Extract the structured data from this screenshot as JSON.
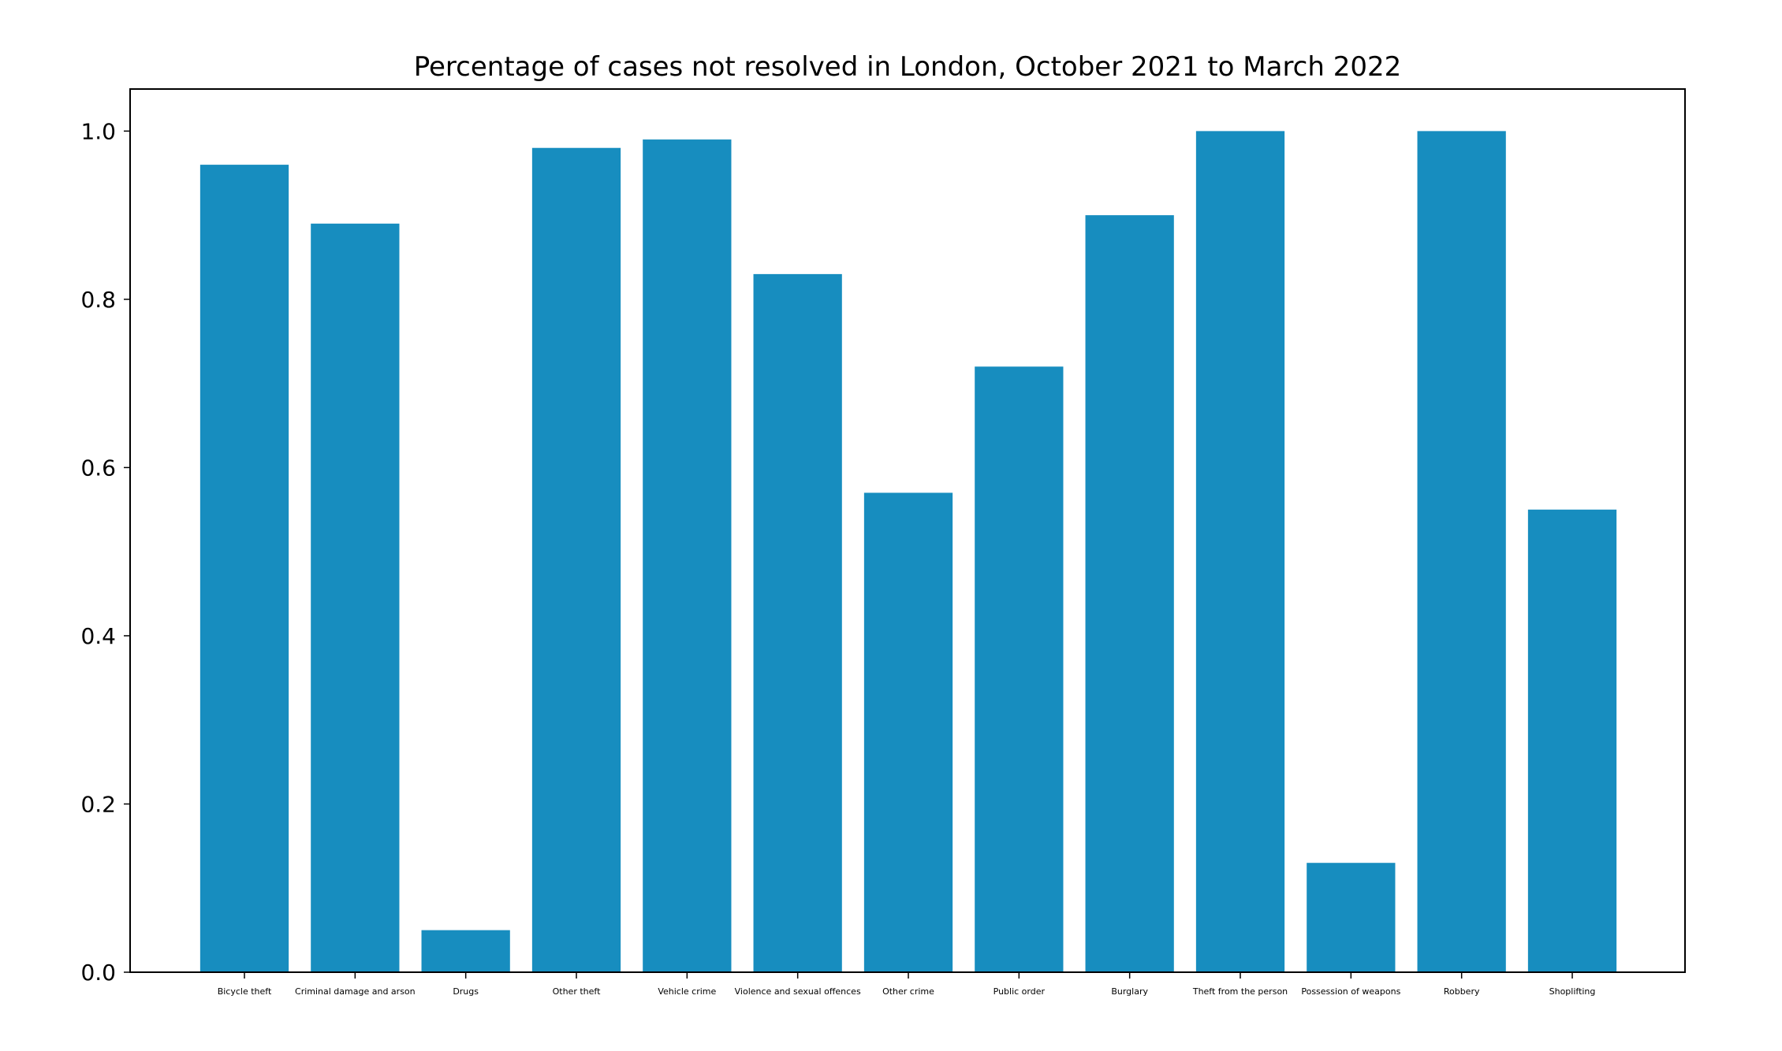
{
  "chart_data": {
    "type": "bar",
    "title": "Percentage of cases not resolved in London, October 2021 to March 2022",
    "xlabel": "",
    "ylabel": "",
    "categories": [
      "Bicycle theft",
      "Criminal damage and arson",
      "Drugs",
      "Other theft",
      "Vehicle crime",
      "Violence and sexual offences",
      "Other crime",
      "Public order",
      "Burglary",
      "Theft from the person",
      "Possession of weapons",
      "Robbery",
      "Shoplifting"
    ],
    "values": [
      0.96,
      0.89,
      0.05,
      0.98,
      0.99,
      0.83,
      0.57,
      0.72,
      0.9,
      1.0,
      0.13,
      1.0,
      0.55
    ],
    "ylim": [
      0,
      1.05
    ],
    "yticks": [
      "0.0",
      "0.2",
      "0.4",
      "0.6",
      "0.8",
      "1.0"
    ],
    "bar_color": "#178dbf",
    "grid": false,
    "legend": "none"
  }
}
